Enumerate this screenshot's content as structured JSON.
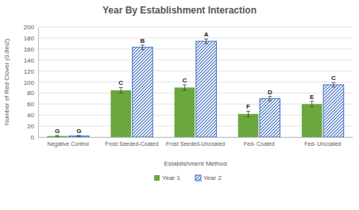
{
  "chart_data": {
    "type": "bar",
    "title": "Year By Establishment Interaction",
    "x_label": "Establishment Method",
    "y_label": "Number of Red Clover (0.8m2)",
    "categories": [
      "Negative Control",
      "Frost Seeded-Coated",
      "Frost Seeded-Uncoated",
      "Fed- Coated",
      "Fed- Uncoated"
    ],
    "series": [
      {
        "name": "Year 1",
        "color": "#6aa83e",
        "values": [
          2,
          85,
          90,
          42,
          60
        ],
        "errors": [
          1,
          5,
          5,
          5,
          5
        ],
        "annotations": [
          "G",
          "C",
          "C",
          "F",
          "E"
        ]
      },
      {
        "name": "Year 2",
        "color": "#4472c4",
        "values": [
          2,
          163,
          174,
          70,
          95
        ],
        "errors": [
          1,
          4,
          4,
          4,
          4
        ],
        "annotations": [
          "G",
          "B",
          "A",
          "D",
          "C"
        ]
      }
    ],
    "ylim": [
      0,
      200
    ],
    "yticks": [
      0,
      20,
      40,
      60,
      80,
      100,
      120,
      140,
      160,
      180,
      200
    ],
    "grid": true,
    "legend": "bottom"
  }
}
